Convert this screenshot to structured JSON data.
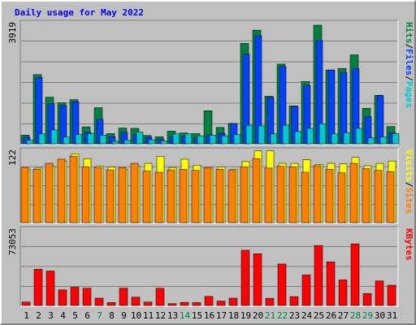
{
  "chart_data": {
    "type": "bar",
    "title": "Daily usage for May 2022",
    "categories": [
      "1",
      "2",
      "3",
      "4",
      "5",
      "6",
      "7",
      "8",
      "9",
      "10",
      "11",
      "12",
      "13",
      "14",
      "15",
      "16",
      "17",
      "18",
      "19",
      "20",
      "21",
      "22",
      "23",
      "24",
      "25",
      "26",
      "27",
      "28",
      "29",
      "30",
      "31"
    ],
    "weekend_days": [
      "7",
      "14",
      "21",
      "22",
      "28",
      "29"
    ],
    "panels": [
      {
        "name": "hits-files-pages",
        "ymax_label": "3919",
        "ylim": [
          0,
          3919
        ],
        "legend": [
          {
            "label": "Pages",
            "color": "#00c8d0"
          },
          {
            "label": "/",
            "color": "#000000"
          },
          {
            "label": "Files",
            "color": "#0040ff"
          },
          {
            "label": "/",
            "color": "#000000"
          },
          {
            "label": "Hits",
            "color": "#008040"
          }
        ],
        "series": [
          {
            "name": "Hits",
            "color": "#008040",
            "values": [
              280,
              2240,
              1510,
              1330,
              1430,
              550,
              1170,
              330,
              510,
              500,
              270,
              230,
              410,
              350,
              330,
              1070,
              530,
              660,
              3250,
              3680,
              1540,
              2580,
              1230,
              2020,
              3840,
              2390,
              2440,
              2880,
              1150,
              1570,
              560
            ]
          },
          {
            "name": "Files",
            "color": "#0040ff",
            "values": [
              210,
              2150,
              1300,
              1240,
              1360,
              380,
              790,
              230,
              370,
              300,
              210,
              140,
              230,
              240,
              180,
              290,
              340,
              660,
              2900,
              3500,
              1500,
              2500,
              1200,
              1890,
              3350,
              2390,
              2300,
              2440,
              880,
              1560,
              360
            ]
          },
          {
            "name": "Pages",
            "color": "#00c8d0",
            "values": [
              120,
              320,
              450,
              220,
              300,
              330,
              280,
              80,
              120,
              380,
              130,
              90,
              320,
              320,
              260,
              280,
              260,
              300,
              600,
              580,
              320,
              600,
              400,
              500,
              650,
              320,
              350,
              500,
              190,
              220,
              330
            ]
          }
        ]
      },
      {
        "name": "visits-sites",
        "ymax_label": "122",
        "ylim": [
          0,
          122
        ],
        "legend": [
          {
            "label": "Sites",
            "color": "#ff8000"
          },
          {
            "label": "/",
            "color": "#000000"
          },
          {
            "label": "Visits",
            "color": "#ffff00"
          }
        ],
        "series": [
          {
            "name": "Visits",
            "color": "#ffff00",
            "values": [
              90,
              92,
              95,
              104,
              116,
              108,
              95,
              94,
              90,
              95,
              100,
              112,
              93,
              107,
              97,
              92,
              94,
              90,
              103,
              121,
              121,
              100,
              100,
              106,
              98,
              100,
              99,
              110,
              96,
              100,
              104
            ]
          },
          {
            "name": "Sites",
            "color": "#ff8000",
            "values": [
              93,
              90,
              100,
              107,
              112,
              94,
              93,
              89,
              93,
              100,
              87,
              85,
              89,
              90,
              88,
              93,
              90,
              88,
              94,
              108,
              92,
              95,
              94,
              85,
              96,
              90,
              84,
              100,
              91,
              88,
              86
            ]
          }
        ]
      },
      {
        "name": "kbytes",
        "ymax_label": "73053",
        "ylim": [
          0,
          73053
        ],
        "legend": [
          {
            "label": "KBytes",
            "color": "#ff0000"
          }
        ],
        "series": [
          {
            "name": "KBytes",
            "color": "#ff0000",
            "values": [
              3300,
              34700,
              33000,
              15000,
              17500,
              16500,
              7000,
              2900,
              16600,
              8000,
              3300,
              16500,
              1800,
              3000,
              2800,
              8700,
              4200,
              7000,
              52900,
              49500,
              6900,
              39700,
              8500,
              29300,
              57400,
              41800,
              24500,
              59000,
              11500,
              23500,
              19400
            ]
          }
        ]
      }
    ]
  }
}
